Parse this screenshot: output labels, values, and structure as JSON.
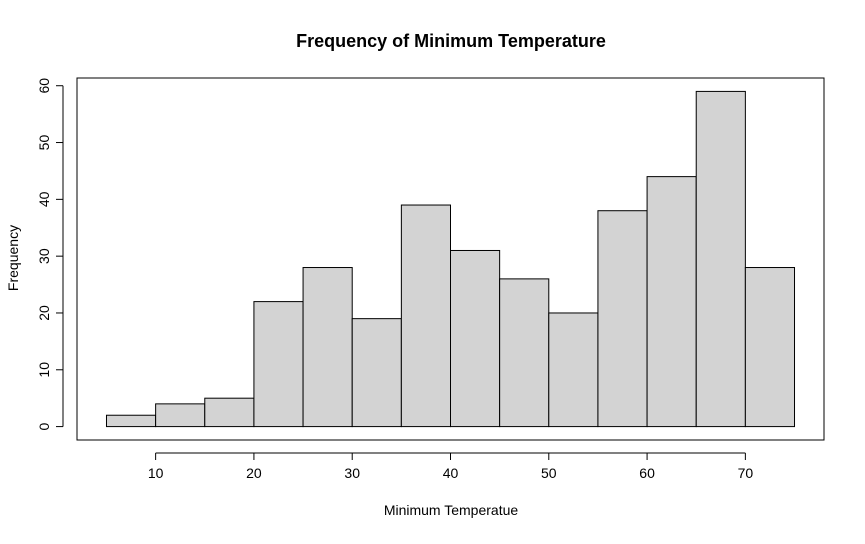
{
  "chart_data": {
    "type": "bar",
    "title": "Frequency of Minimum Temperature",
    "xlabel": "Minimum Temperatue",
    "ylabel": "Frequency",
    "bin_edges": [
      5,
      10,
      15,
      20,
      25,
      30,
      35,
      40,
      45,
      50,
      55,
      60,
      65,
      70,
      75
    ],
    "values": [
      2,
      4,
      5,
      22,
      28,
      19,
      39,
      31,
      26,
      20,
      38,
      44,
      59,
      28
    ],
    "xlim": [
      2,
      78
    ],
    "ylim": [
      -2.36,
      61.36
    ],
    "x_ticks": [
      10,
      20,
      30,
      40,
      50,
      60,
      70
    ],
    "x_tick_labels": [
      "10",
      "20",
      "30",
      "40",
      "50",
      "60",
      "70"
    ],
    "y_ticks": [
      0,
      10,
      20,
      30,
      40,
      50,
      60
    ],
    "y_tick_labels": [
      "0",
      "10",
      "20",
      "30",
      "40",
      "50",
      "60"
    ],
    "grid": false,
    "bar_color": "#d3d3d3",
    "bar_edge_color": "#000000"
  }
}
